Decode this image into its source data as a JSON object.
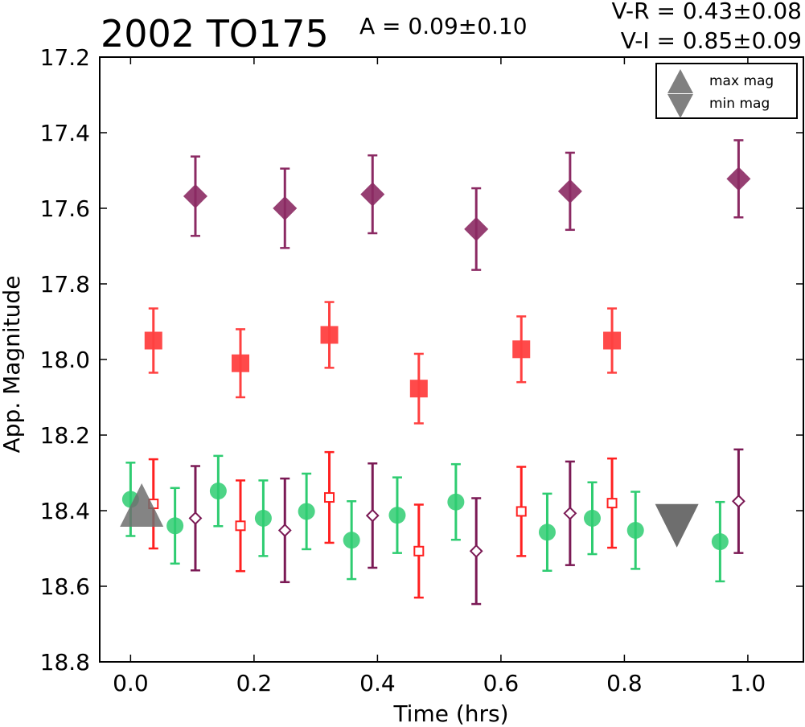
{
  "chart_data": {
    "type": "scatter",
    "title": "2002 TO175",
    "amplitude_text": "A  = 0.09±0.10",
    "color_text_1": "V-R = 0.43±0.08",
    "color_text_2": "V-I  = 0.85±0.09",
    "xlabel": "Time (hrs)",
    "ylabel": "App. Magnitude",
    "xlim": [
      -0.05,
      1.09
    ],
    "ylim": [
      18.8,
      17.2
    ],
    "y_inverted": true,
    "xticks": [
      "0.0",
      "0.2",
      "0.4",
      "0.6",
      "0.8",
      "1.0"
    ],
    "xtick_values": [
      0.0,
      0.2,
      0.4,
      0.6,
      0.8,
      1.0
    ],
    "yticks": [
      "17.2",
      "17.4",
      "17.6",
      "17.8",
      "18.0",
      "18.2",
      "18.4",
      "18.6",
      "18.8"
    ],
    "ytick_values": [
      17.2,
      17.4,
      17.6,
      17.8,
      18.0,
      18.2,
      18.4,
      18.6,
      18.8
    ],
    "grid": false,
    "legend": {
      "placement": "top-right",
      "entries": [
        {
          "label": "max mag",
          "marker": "triangle-up",
          "color": "#808080"
        },
        {
          "label": "min mag",
          "marker": "triangle-down",
          "color": "#808080"
        }
      ]
    },
    "series": [
      {
        "marker": "diamond",
        "filled": true,
        "color": "#8b2a63",
        "points": [
          {
            "x": 0.105,
            "y": 17.568,
            "err": 0.105
          },
          {
            "x": 0.25,
            "y": 17.6,
            "err": 0.105
          },
          {
            "x": 0.392,
            "y": 17.563,
            "err": 0.103
          },
          {
            "x": 0.56,
            "y": 17.655,
            "err": 0.108
          },
          {
            "x": 0.712,
            "y": 17.555,
            "err": 0.102
          },
          {
            "x": 0.985,
            "y": 17.522,
            "err": 0.102
          }
        ]
      },
      {
        "marker": "square",
        "filled": true,
        "color": "#ff4040",
        "points": [
          {
            "x": 0.037,
            "y": 17.95,
            "err": 0.085
          },
          {
            "x": 0.178,
            "y": 18.01,
            "err": 0.09
          },
          {
            "x": 0.322,
            "y": 17.935,
            "err": 0.087
          },
          {
            "x": 0.467,
            "y": 18.077,
            "err": 0.092
          },
          {
            "x": 0.633,
            "y": 17.973,
            "err": 0.087
          },
          {
            "x": 0.78,
            "y": 17.95,
            "err": 0.085
          }
        ]
      },
      {
        "marker": "circle",
        "filled": true,
        "color": "#2ecc71",
        "points": [
          {
            "x": 0.0,
            "y": 18.37,
            "err": 0.097
          },
          {
            "x": 0.072,
            "y": 18.44,
            "err": 0.1
          },
          {
            "x": 0.142,
            "y": 18.348,
            "err": 0.093
          },
          {
            "x": 0.215,
            "y": 18.42,
            "err": 0.1
          },
          {
            "x": 0.285,
            "y": 18.402,
            "err": 0.1
          },
          {
            "x": 0.358,
            "y": 18.478,
            "err": 0.103
          },
          {
            "x": 0.432,
            "y": 18.412,
            "err": 0.1
          },
          {
            "x": 0.527,
            "y": 18.377,
            "err": 0.1
          },
          {
            "x": 0.675,
            "y": 18.457,
            "err": 0.102
          },
          {
            "x": 0.748,
            "y": 18.42,
            "err": 0.095
          },
          {
            "x": 0.818,
            "y": 18.452,
            "err": 0.102
          },
          {
            "x": 0.955,
            "y": 18.482,
            "err": 0.105
          }
        ]
      },
      {
        "marker": "square",
        "filled": false,
        "color": "#ff2020",
        "points": [
          {
            "x": 0.037,
            "y": 18.382,
            "err": 0.118
          },
          {
            "x": 0.178,
            "y": 18.44,
            "err": 0.12
          },
          {
            "x": 0.322,
            "y": 18.365,
            "err": 0.12
          },
          {
            "x": 0.467,
            "y": 18.507,
            "err": 0.123
          },
          {
            "x": 0.633,
            "y": 18.402,
            "err": 0.118
          },
          {
            "x": 0.78,
            "y": 18.38,
            "err": 0.118
          }
        ]
      },
      {
        "marker": "diamond",
        "filled": false,
        "color": "#7b1a55",
        "points": [
          {
            "x": 0.105,
            "y": 18.42,
            "err": 0.138
          },
          {
            "x": 0.25,
            "y": 18.452,
            "err": 0.137
          },
          {
            "x": 0.392,
            "y": 18.413,
            "err": 0.138
          },
          {
            "x": 0.56,
            "y": 18.507,
            "err": 0.14
          },
          {
            "x": 0.712,
            "y": 18.407,
            "err": 0.137
          },
          {
            "x": 0.985,
            "y": 18.375,
            "err": 0.137
          }
        ]
      }
    ],
    "markers": [
      {
        "type": "triangle-up",
        "x": 0.018,
        "y": 18.385,
        "color": "#6e6e6e",
        "label": "max mag"
      },
      {
        "type": "triangle-down",
        "x": 0.885,
        "y": 18.44,
        "color": "#6e6e6e",
        "label": "min mag"
      }
    ]
  }
}
